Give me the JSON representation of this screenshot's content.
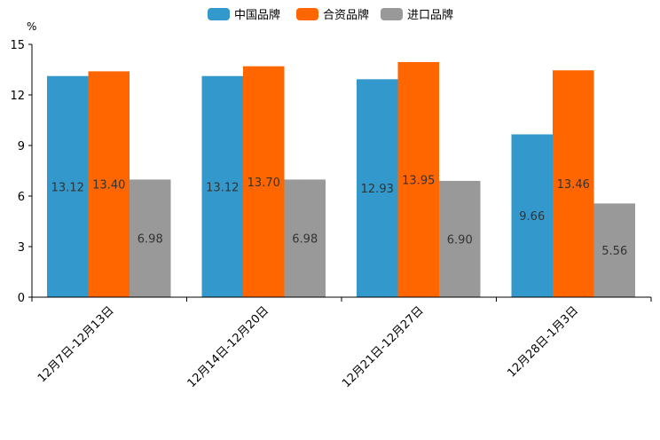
{
  "chart_data": {
    "type": "bar",
    "title": "",
    "xlabel": "",
    "ylabel": "",
    "y_unit": "%",
    "ylim": [
      0,
      15
    ],
    "yticks": [
      0,
      3,
      6,
      9,
      12,
      15
    ],
    "categories": [
      "12月7日-12月13日",
      "12月14日-12月20日",
      "12月21日-12月27日",
      "12月28日-1月3日"
    ],
    "series": [
      {
        "name": "中国品牌",
        "color": "#3399cc",
        "values": [
          13.12,
          13.12,
          12.93,
          9.66
        ],
        "labels": [
          "13.12",
          "13.12",
          "12.93",
          "9.66"
        ]
      },
      {
        "name": "合资品牌",
        "color": "#ff6600",
        "values": [
          13.4,
          13.7,
          13.95,
          13.46
        ],
        "labels": [
          "13.40",
          "13.70",
          "13.95",
          "13.46"
        ]
      },
      {
        "name": "进口品牌",
        "color": "#999999",
        "values": [
          6.98,
          6.98,
          6.9,
          5.56
        ],
        "labels": [
          "6.98",
          "6.98",
          "6.90",
          "5.56"
        ]
      }
    ],
    "legend_position": "top-center",
    "grid": false
  }
}
